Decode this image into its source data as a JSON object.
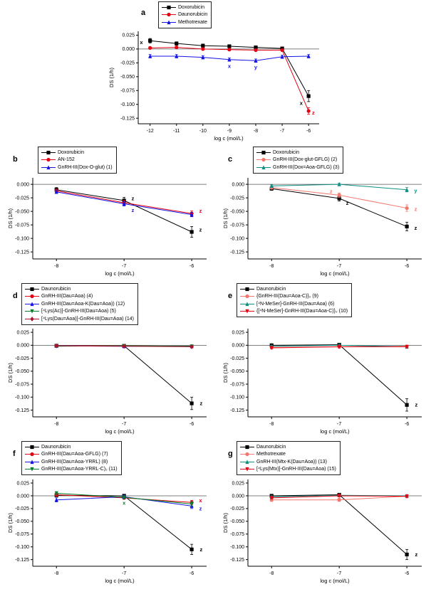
{
  "figure": {
    "panel_ids": [
      "a",
      "b",
      "c",
      "d",
      "e",
      "f",
      "g"
    ]
  },
  "chart_data": [
    {
      "id": "a",
      "panel_label": "a",
      "type": "line",
      "xlabel": "log c (mol/L)",
      "ylabel": "DS (1/h)",
      "x": [
        -12,
        -11,
        -10,
        -9,
        -8,
        -7,
        -6
      ],
      "xticks": [
        -12,
        -11,
        -10,
        -9,
        -8,
        -7,
        -6
      ],
      "xlim": [
        -12.45,
        -5.6
      ],
      "ylim": [
        -0.135,
        0.032
      ],
      "yticks": [
        0.025,
        0.0,
        -0.025,
        -0.05,
        -0.075,
        -0.1,
        -0.125
      ],
      "legend_position": "top",
      "grid": false,
      "series": [
        {
          "name": "Doxorubicin",
          "marker": "square",
          "color": "#000000",
          "values": [
            0.015,
            0.01,
            0.006,
            0.005,
            0.003,
            0.001,
            -0.085
          ],
          "errors": [
            0.004,
            0.003,
            0.003,
            0.002,
            0.002,
            0.002,
            0.01
          ]
        },
        {
          "name": "Daunorubicin",
          "marker": "circle",
          "color": "#e60012",
          "values": [
            0.002,
            0.003,
            0.0,
            -0.001,
            -0.002,
            -0.002,
            -0.112
          ],
          "errors": [
            0.002,
            0.002,
            0.002,
            0.002,
            0.002,
            0.002,
            0.006
          ]
        },
        {
          "name": "Methotrexate",
          "marker": "triangle-up",
          "color": "#1414e6",
          "values": [
            -0.013,
            -0.013,
            -0.015,
            -0.019,
            -0.021,
            -0.014,
            -0.013
          ],
          "errors": [
            0.003,
            0.003,
            0.003,
            0.003,
            0.003,
            0.003,
            0.003
          ]
        }
      ],
      "annotations": [
        {
          "x": -12.33,
          "y": 0.012,
          "text": "x",
          "color": "#000000"
        },
        {
          "x": -9.0,
          "y": -0.031,
          "text": "x",
          "color": "#1414e6"
        },
        {
          "x": -8.0,
          "y": -0.033,
          "text": "y",
          "color": "#1414e6"
        },
        {
          "x": -6.28,
          "y": -0.098,
          "text": "x",
          "color": "#000000"
        },
        {
          "x": -5.82,
          "y": -0.115,
          "text": "z",
          "color": "#e60012"
        }
      ]
    },
    {
      "id": "b",
      "panel_label": "b",
      "type": "line",
      "xlabel": "log c (mol/L)",
      "ylabel": "DS (1/h)",
      "x": [
        -8,
        -7,
        -6
      ],
      "xticks": [
        -8,
        -7,
        -6
      ],
      "xlim": [
        -8.35,
        -5.78
      ],
      "ylim": [
        -0.138,
        0.012
      ],
      "yticks": [
        0.0,
        -0.025,
        -0.05,
        -0.075,
        -0.1,
        -0.125
      ],
      "legend_position": "top",
      "grid": false,
      "series": [
        {
          "name": "Doxorubicin",
          "marker": "square",
          "color": "#000000",
          "values": [
            -0.01,
            -0.03,
            -0.088
          ],
          "errors": [
            0.004,
            0.006,
            0.01
          ]
        },
        {
          "name": "AN-152",
          "marker": "circle",
          "color": "#e60012",
          "values": [
            -0.012,
            -0.034,
            -0.054
          ],
          "errors": [
            0.003,
            0.004,
            0.005
          ]
        },
        {
          "name": "GnRH-III(Dox-O-glut) (1)",
          "marker": "triangle-up",
          "color": "#1414e6",
          "values": [
            -0.014,
            -0.036,
            -0.056
          ],
          "errors": [
            0.003,
            0.004,
            0.004
          ]
        }
      ],
      "annotations": [
        {
          "x": -6.87,
          "y": -0.026,
          "text": "z",
          "color": "#000000"
        },
        {
          "x": -6.87,
          "y": -0.048,
          "text": "z",
          "color": "#1414e6"
        },
        {
          "x": -5.87,
          "y": -0.049,
          "text": "z",
          "color": "#e60012"
        },
        {
          "x": -5.87,
          "y": -0.084,
          "text": "z",
          "color": "#000000"
        }
      ]
    },
    {
      "id": "c",
      "panel_label": "c",
      "type": "line",
      "xlabel": "log c (mol/L)",
      "ylabel": "DS (1/h)",
      "x": [
        -8,
        -7,
        -6
      ],
      "xticks": [
        -8,
        -7,
        -6
      ],
      "xlim": [
        -8.35,
        -5.78
      ],
      "ylim": [
        -0.138,
        0.012
      ],
      "yticks": [
        0.0,
        -0.025,
        -0.05,
        -0.075,
        -0.1,
        -0.125
      ],
      "legend_position": "top",
      "grid": false,
      "series": [
        {
          "name": "Doxorubicin",
          "marker": "square",
          "color": "#000000",
          "values": [
            -0.008,
            -0.026,
            -0.078
          ],
          "errors": [
            0.003,
            0.005,
            0.008
          ]
        },
        {
          "name": "GnRH-III(Dox-glut-GFLG) (2)",
          "marker": "circle",
          "color": "#f2766b",
          "values": [
            -0.006,
            -0.02,
            -0.044
          ],
          "errors": [
            0.003,
            0.004,
            0.006
          ]
        },
        {
          "name": "GnRH-III(Dox=Aoa-GFLG) (3)",
          "marker": "triangle-up",
          "color": "#0f8f82",
          "values": [
            -0.003,
            0.0,
            -0.01
          ],
          "errors": [
            0.002,
            0.002,
            0.004
          ]
        }
      ],
      "annotations": [
        {
          "x": -7.12,
          "y": -0.013,
          "text": "z",
          "color": "#f2766b"
        },
        {
          "x": -6.88,
          "y": -0.035,
          "text": "z",
          "color": "#000000"
        },
        {
          "x": -5.87,
          "y": -0.012,
          "text": "y",
          "color": "#0f8f82"
        },
        {
          "x": -5.87,
          "y": -0.046,
          "text": "z",
          "color": "#f2766b"
        },
        {
          "x": -5.87,
          "y": -0.081,
          "text": "z",
          "color": "#000000"
        }
      ]
    },
    {
      "id": "d",
      "panel_label": "d",
      "type": "line",
      "xlabel": "log c (mol/L)",
      "ylabel": "DS (1/h)",
      "x": [
        -8,
        -7,
        -6
      ],
      "xticks": [
        -8,
        -7,
        -6
      ],
      "xlim": [
        -8.35,
        -5.78
      ],
      "ylim": [
        -0.138,
        0.032
      ],
      "yticks": [
        0.025,
        0.0,
        -0.025,
        -0.05,
        -0.075,
        -0.1,
        -0.125
      ],
      "legend_position": "top",
      "grid": false,
      "series": [
        {
          "name": "Daunorubicin",
          "marker": "square",
          "color": "#000000",
          "values": [
            -0.001,
            -0.001,
            -0.112
          ],
          "errors": [
            0.002,
            0.002,
            0.012
          ]
        },
        {
          "name": "GnRH-III(Dau=Aoa) (4)",
          "marker": "circle",
          "color": "#e60012",
          "values": [
            -0.001,
            -0.001,
            -0.002
          ],
          "errors": [
            0.001,
            0.001,
            0.002
          ]
        },
        {
          "name": "GnRH-III(Dau=Aoa-K(Dau=Aoa)) (12)",
          "marker": "triangle-up",
          "color": "#1414e6",
          "values": [
            -0.001,
            -0.002,
            -0.002
          ],
          "errors": [
            0.001,
            0.001,
            0.002
          ]
        },
        {
          "name": "[⁴Lys(Ac)]-GnRH-III(Dau=Aoa) (5)",
          "marker": "triangle-down",
          "color": "#0a7d28",
          "values": [
            -0.002,
            -0.001,
            -0.002
          ],
          "errors": [
            0.001,
            0.001,
            0.002
          ]
        },
        {
          "name": "[⁴Lys(Dau=Aoa)]-GnRH-III(Dau=Aoa) (14)",
          "marker": "diamond",
          "color": "#b01030",
          "values": [
            -0.001,
            -0.002,
            -0.003
          ],
          "errors": [
            0.001,
            0.001,
            0.002
          ]
        }
      ],
      "annotations": [
        {
          "x": -5.86,
          "y": -0.112,
          "text": "z",
          "color": "#000000"
        }
      ]
    },
    {
      "id": "e",
      "panel_label": "e",
      "type": "line",
      "xlabel": "log c (mol/L)",
      "ylabel": "DS (1/h)",
      "x": [
        -8,
        -7,
        -6
      ],
      "xticks": [
        -8,
        -7,
        -6
      ],
      "xlim": [
        -8.35,
        -5.78
      ],
      "ylim": [
        -0.138,
        0.032
      ],
      "yticks": [
        0.025,
        0.0,
        -0.025,
        -0.05,
        -0.075,
        -0.1,
        -0.125
      ],
      "legend_position": "top",
      "grid": false,
      "series": [
        {
          "name": "Daunorubicin",
          "marker": "square",
          "color": "#000000",
          "values": [
            0.0,
            0.001,
            -0.115
          ],
          "errors": [
            0.002,
            0.002,
            0.012
          ]
        },
        {
          "name": "{GnRH-III(Dau=Aoa-C)}₂ (9)",
          "marker": "circle",
          "color": "#f2766b",
          "values": [
            -0.004,
            -0.003,
            -0.002
          ],
          "errors": [
            0.002,
            0.002,
            0.002
          ]
        },
        {
          "name": "[⁴N-MeSer]-GnRH-III(Dau=Aoa) (6)",
          "marker": "triangle-up",
          "color": "#0f8f82",
          "values": [
            -0.002,
            0.0,
            -0.003
          ],
          "errors": [
            0.002,
            0.002,
            0.002
          ]
        },
        {
          "name": "{[⁴N-MeSer]-GnRH-III(Dau=Aoa-C)}₂ (10)",
          "marker": "triangle-down",
          "color": "#e60012",
          "values": [
            -0.005,
            -0.003,
            -0.003
          ],
          "errors": [
            0.002,
            0.002,
            0.002
          ]
        }
      ],
      "annotations": [
        {
          "x": -5.86,
          "y": -0.115,
          "text": "z",
          "color": "#000000"
        }
      ]
    },
    {
      "id": "f",
      "panel_label": "f",
      "type": "line",
      "xlabel": "log c (mol/L)",
      "ylabel": "DS (1/h)",
      "x": [
        -8,
        -7,
        -6
      ],
      "xticks": [
        -8,
        -7,
        -6
      ],
      "xlim": [
        -8.35,
        -5.78
      ],
      "ylim": [
        -0.138,
        0.032
      ],
      "yticks": [
        0.025,
        0.0,
        -0.025,
        -0.05,
        -0.075,
        -0.1,
        -0.125
      ],
      "legend_position": "top",
      "grid": false,
      "series": [
        {
          "name": "Daunorubicin",
          "marker": "square",
          "color": "#000000",
          "values": [
            0.001,
            0.0,
            -0.105
          ],
          "errors": [
            0.002,
            0.002,
            0.01
          ]
        },
        {
          "name": "GnRH-III(Dau=Aoa-GFLG) (7)",
          "marker": "circle",
          "color": "#e60012",
          "values": [
            0.002,
            -0.004,
            -0.013
          ],
          "errors": [
            0.003,
            0.003,
            0.004
          ]
        },
        {
          "name": "GnRH-III(Dau=Aoa-YRRL) (8)",
          "marker": "triangle-up",
          "color": "#1414e6",
          "values": [
            -0.008,
            -0.002,
            -0.02
          ],
          "errors": [
            0.004,
            0.003,
            0.005
          ]
        },
        {
          "name": "GnRH-III(Dau=Aoa-YRRL-C)₂ (11)",
          "marker": "triangle-down",
          "color": "#0a7d28",
          "values": [
            0.005,
            -0.003,
            -0.016
          ],
          "errors": [
            0.003,
            0.003,
            0.004
          ]
        }
      ],
      "annotations": [
        {
          "x": -7.0,
          "y": -0.014,
          "text": "x",
          "color": "#0a7d28"
        },
        {
          "x": -5.87,
          "y": -0.009,
          "text": "x",
          "color": "#e60012"
        },
        {
          "x": -5.87,
          "y": -0.025,
          "text": "z",
          "color": "#1414e6"
        },
        {
          "x": -5.86,
          "y": -0.105,
          "text": "z",
          "color": "#000000"
        }
      ]
    },
    {
      "id": "g",
      "panel_label": "g",
      "type": "line",
      "xlabel": "log c (mol/L)",
      "ylabel": "DS (1/h)",
      "x": [
        -8,
        -7,
        -6
      ],
      "xticks": [
        -8,
        -7,
        -6
      ],
      "xlim": [
        -8.35,
        -5.78
      ],
      "ylim": [
        -0.138,
        0.032
      ],
      "yticks": [
        0.025,
        0.0,
        -0.025,
        -0.05,
        -0.075,
        -0.1,
        -0.125
      ],
      "legend_position": "top",
      "grid": false,
      "series": [
        {
          "name": "Daunorubicin",
          "marker": "square",
          "color": "#000000",
          "values": [
            0.0,
            0.002,
            -0.115
          ],
          "errors": [
            0.002,
            0.002,
            0.01
          ]
        },
        {
          "name": "Methotrexate",
          "marker": "circle",
          "color": "#f2766b",
          "values": [
            -0.008,
            -0.008,
            -0.001
          ],
          "errors": [
            0.003,
            0.003,
            0.003
          ]
        },
        {
          "name": "GnRH-III(Mtx-K(Dau=Aoa)) (13)",
          "marker": "triangle-up",
          "color": "#0f8f82",
          "values": [
            -0.002,
            0.001,
            0.0
          ],
          "errors": [
            0.002,
            0.002,
            0.002
          ]
        },
        {
          "name": "[⁴Lys(Mtx)]-GnRH-III(Dau=Aoa) (15)",
          "marker": "triangle-down",
          "color": "#e60012",
          "values": [
            -0.004,
            0.0,
            -0.001
          ],
          "errors": [
            0.002,
            0.002,
            0.002
          ]
        }
      ],
      "annotations": [
        {
          "x": -5.86,
          "y": -0.115,
          "text": "z",
          "color": "#000000"
        }
      ]
    }
  ]
}
